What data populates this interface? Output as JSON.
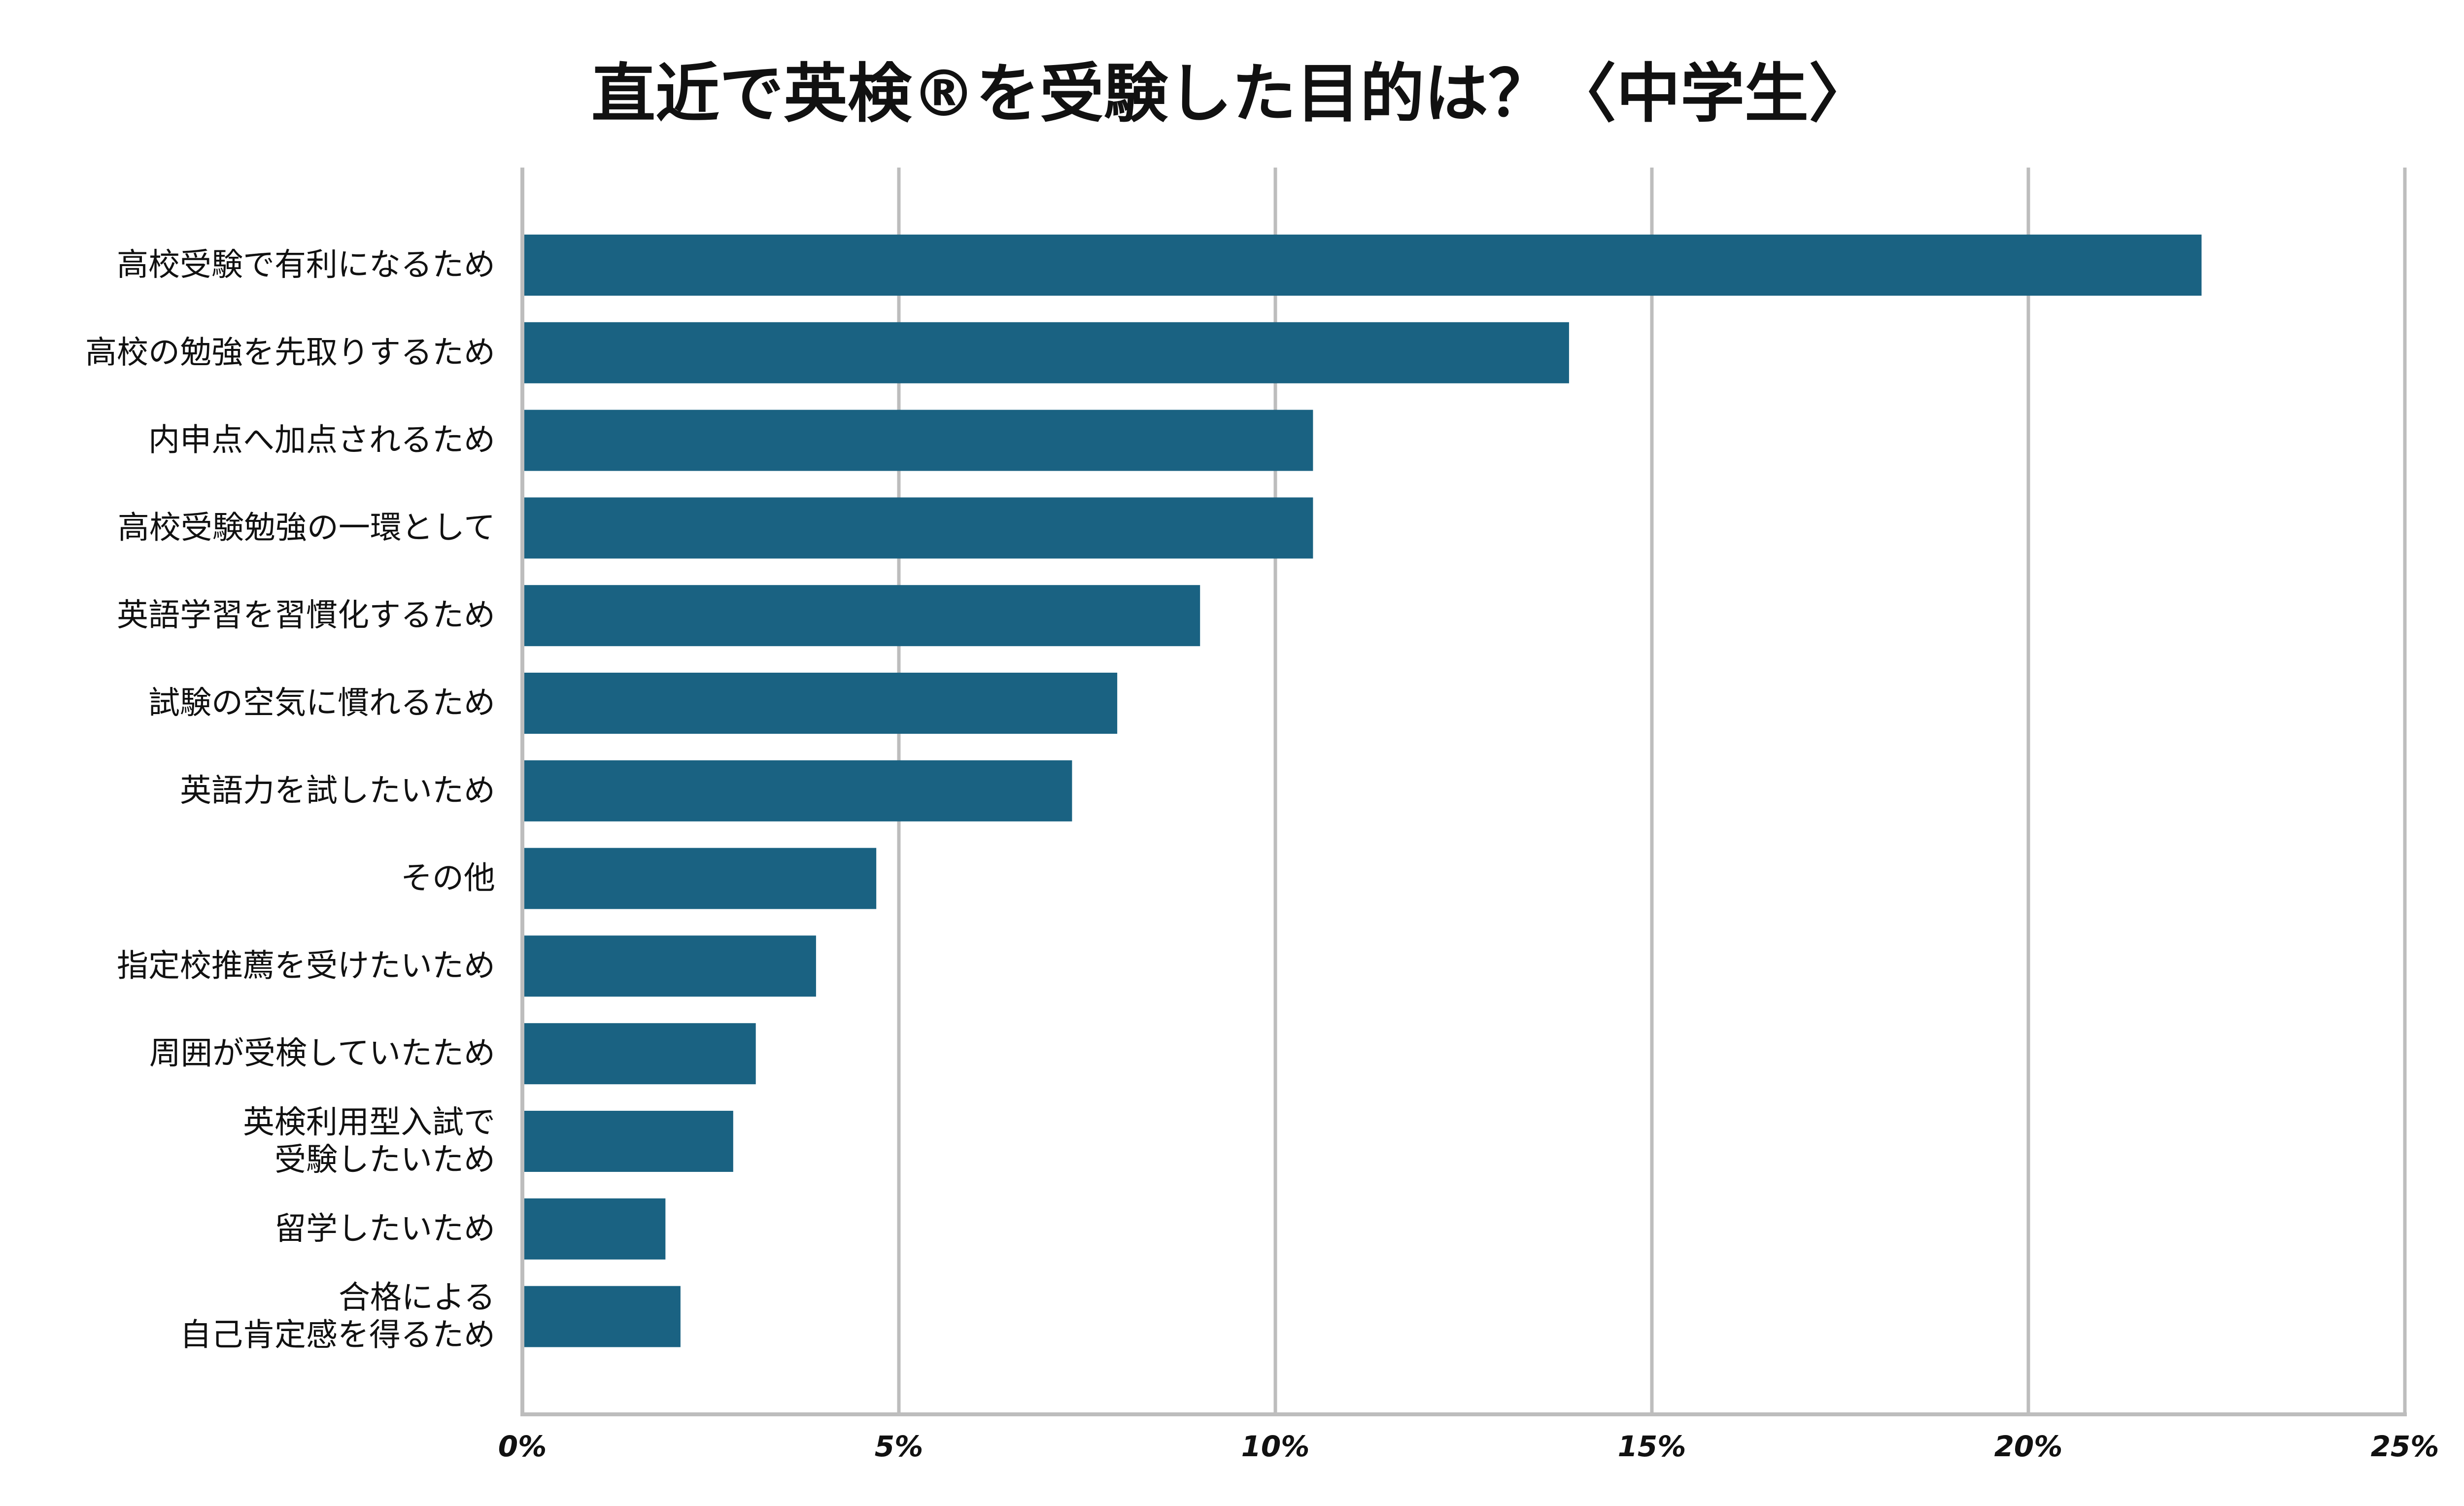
{
  "chart_data": {
    "type": "bar",
    "orientation": "horizontal",
    "title": "直近で英検®を受験した目的は？〈中学生〉",
    "xlabel": "",
    "ylabel": "",
    "xlim": [
      0,
      25
    ],
    "x_ticks": [
      0,
      5,
      10,
      15,
      20,
      25
    ],
    "x_tick_labels": [
      "0%",
      "5%",
      "10%",
      "15%",
      "20%",
      "25%"
    ],
    "grid": true,
    "bar_color": "#1a6282",
    "categories": [
      [
        "高校受験で有利になるため"
      ],
      [
        "高校の勉強を先取りするため"
      ],
      [
        "内申点へ加点されるため"
      ],
      [
        "高校受験勉強の一環として"
      ],
      [
        "英語学習を習慣化するため"
      ],
      [
        "試験の空気に慣れるため"
      ],
      [
        "英語力を試したいため"
      ],
      [
        "その他"
      ],
      [
        "指定校推薦を受けたいため"
      ],
      [
        "周囲が受検していたため"
      ],
      [
        "英検利用型入試で",
        "受験したいため"
      ],
      [
        "留学したいため"
      ],
      [
        "合格による",
        "自己肯定感を得るため"
      ]
    ],
    "values": [
      22.3,
      13.9,
      10.5,
      10.5,
      9.0,
      7.9,
      7.3,
      4.7,
      3.9,
      3.1,
      2.8,
      1.9,
      2.1
    ]
  }
}
